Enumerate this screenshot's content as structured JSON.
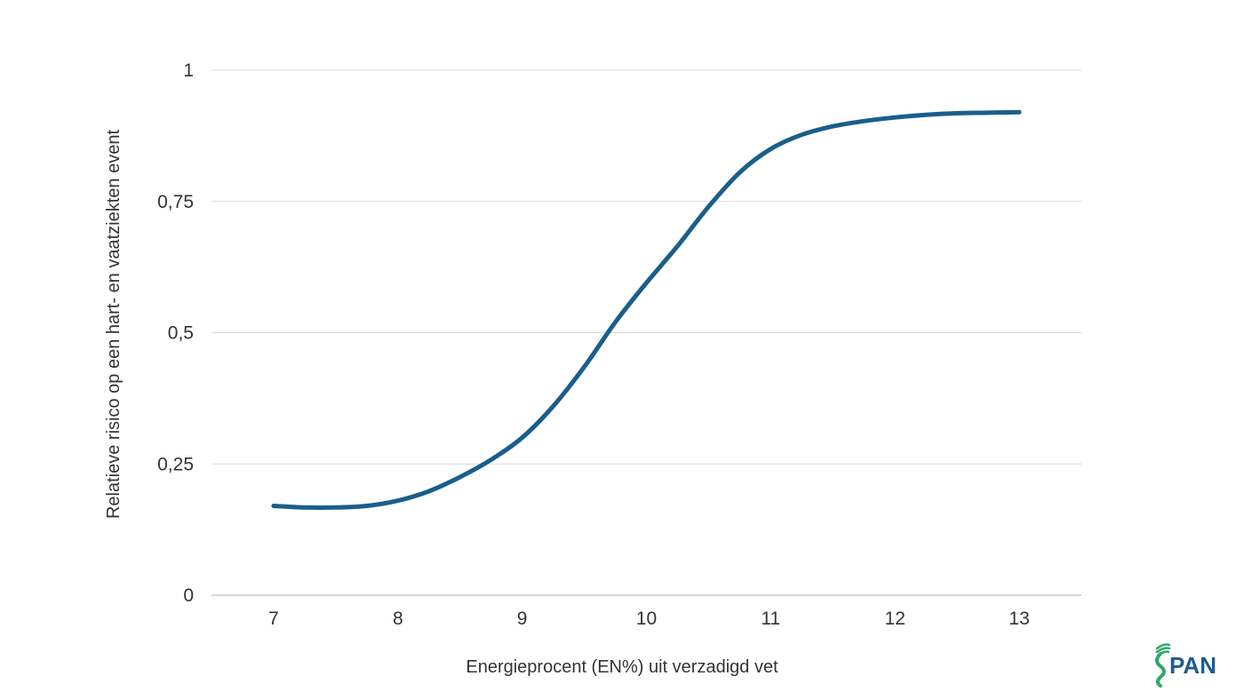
{
  "chart_data": {
    "type": "line",
    "title": "",
    "xlabel": "Energieprocent (EN%) uit verzadigd vet",
    "ylabel": "Relatieve risico op een hart- en vaatziekten event",
    "x_ticks": [
      "7",
      "8",
      "9",
      "10",
      "11",
      "12",
      "13"
    ],
    "y_ticks": [
      "0",
      "0,25",
      "0,5",
      "0,75",
      "1"
    ],
    "xlim": [
      6.5,
      13.5
    ],
    "ylim": [
      0,
      1
    ],
    "grid": true,
    "series": [
      {
        "color": "#1a5e8c",
        "x": [
          7.0,
          7.25,
          7.5,
          7.75,
          8.0,
          8.25,
          8.5,
          8.75,
          9.0,
          9.25,
          9.5,
          9.75,
          10.0,
          10.25,
          10.5,
          10.75,
          11.0,
          11.25,
          11.5,
          11.75,
          12.0,
          12.25,
          12.5,
          12.75,
          13.0
        ],
        "y": [
          0.17,
          0.167,
          0.167,
          0.17,
          0.18,
          0.198,
          0.225,
          0.258,
          0.3,
          0.36,
          0.435,
          0.52,
          0.595,
          0.665,
          0.74,
          0.805,
          0.85,
          0.877,
          0.893,
          0.903,
          0.91,
          0.915,
          0.918,
          0.919,
          0.92
        ]
      }
    ]
  },
  "logo": {
    "text": "PAN",
    "color": "#1f5b8c",
    "mark_color": "#2fa86b"
  }
}
